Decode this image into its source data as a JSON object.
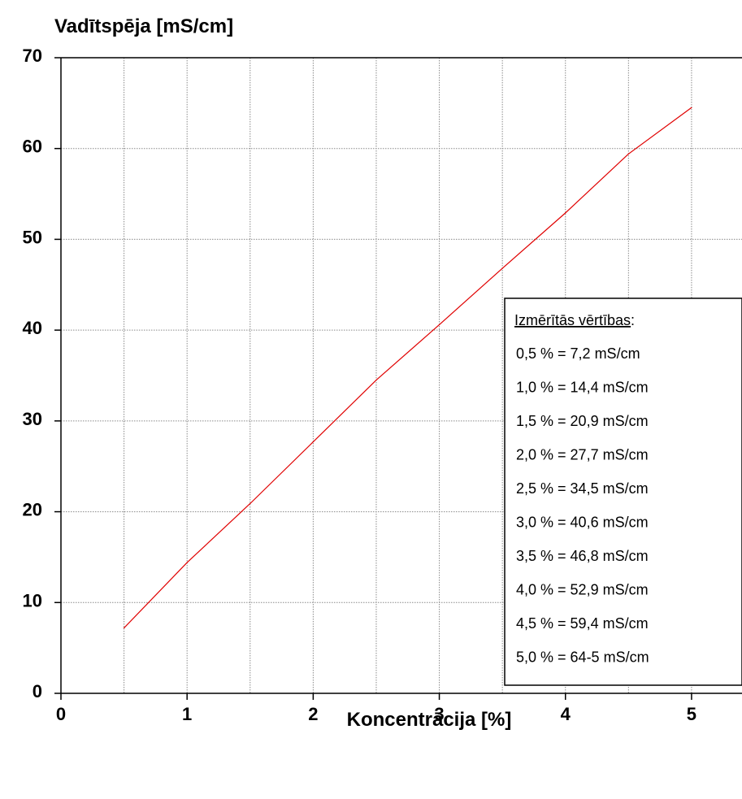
{
  "chart_data": {
    "type": "line",
    "ylabel": "Vadītspēja [mS/cm]",
    "xlabel": "Koncentrācija [%]",
    "xlim": [
      0,
      5.4
    ],
    "ylim": [
      0,
      70
    ],
    "x_ticks": [
      0,
      1,
      2,
      3,
      4,
      5
    ],
    "y_ticks": [
      0,
      10,
      20,
      30,
      40,
      50,
      60,
      70
    ],
    "grid": true,
    "series": [
      {
        "color": "#e00000",
        "x": [
          0.5,
          1.0,
          1.5,
          2.0,
          2.5,
          3.0,
          3.5,
          4.0,
          4.5,
          5.0
        ],
        "values": [
          7.2,
          14.4,
          20.9,
          27.7,
          34.5,
          40.6,
          46.8,
          52.9,
          59.4,
          64.5
        ]
      }
    ],
    "legend": {
      "placement": "right",
      "title": "Izmērītās vērtības",
      "title_suffix": ":",
      "entries": [
        "0,5 % = 7,2 mS/cm",
        "1,0 % = 14,4 mS/cm",
        "1,5 % = 20,9 mS/cm",
        "2,0 % = 27,7 mS/cm",
        "2,5 % = 34,5 mS/cm",
        "3,0 % = 40,6 mS/cm",
        "3,5 % = 46,8 mS/cm",
        "4,0 % = 52,9 mS/cm",
        "4,5 % = 59,4 mS/cm",
        "5,0 % = 64-5 mS/cm"
      ]
    }
  }
}
